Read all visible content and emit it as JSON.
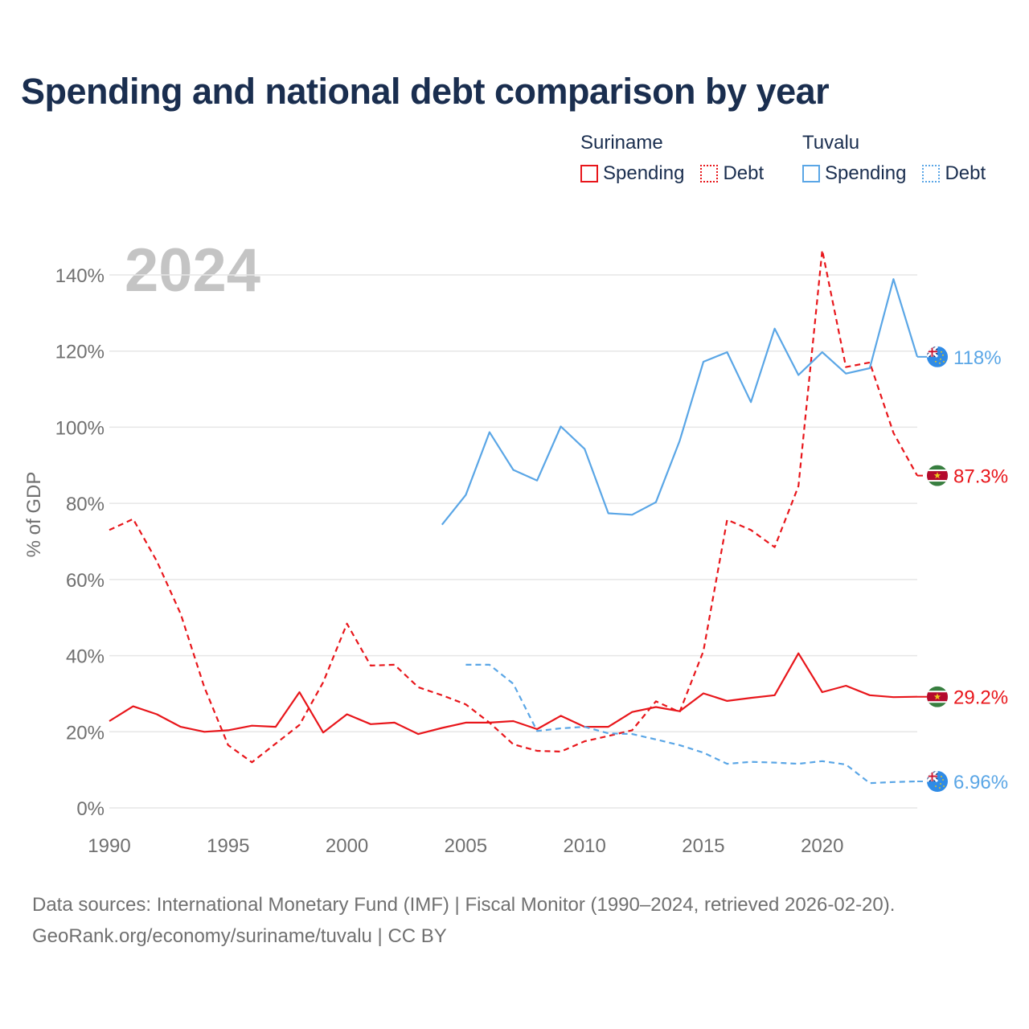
{
  "header": {
    "title": "Spending and national debt comparison by year"
  },
  "legend": {
    "groups": [
      {
        "name": "Suriname",
        "items": [
          {
            "label": "Spending",
            "style": "solid",
            "color": "#e8161b"
          },
          {
            "label": "Debt",
            "style": "dashed",
            "color": "#e8161b"
          }
        ]
      },
      {
        "name": "Tuvalu",
        "items": [
          {
            "label": "Spending",
            "style": "solid",
            "color": "#5aa6e6"
          },
          {
            "label": "Debt",
            "style": "dashed",
            "color": "#5aa6e6"
          }
        ]
      }
    ]
  },
  "chart_data": {
    "type": "line",
    "title": "Spending and national debt comparison by year",
    "year_watermark": "2024",
    "xlabel": "",
    "ylabel": "% of GDP",
    "xlim": [
      1990,
      2024
    ],
    "ylim": [
      0,
      140
    ],
    "x_ticks": [
      1990,
      1995,
      2000,
      2005,
      2010,
      2015,
      2020
    ],
    "x_tick_labels": [
      "1990",
      "1995",
      "2000",
      "2005",
      "2010",
      "2015",
      "2020"
    ],
    "y_ticks": [
      0,
      20,
      40,
      60,
      80,
      100,
      120,
      140
    ],
    "y_tick_labels": [
      "0%",
      "20%",
      "40%",
      "60%",
      "80%",
      "100%",
      "120%",
      "140%"
    ],
    "grid": true,
    "series": [
      {
        "name": "Suriname Spending",
        "country": "Suriname",
        "metric": "Spending",
        "color": "#e8161b",
        "style": "solid",
        "end_label": "29.2%",
        "flag": "suriname",
        "x": [
          1990,
          1991,
          1992,
          1993,
          1994,
          1995,
          1996,
          1997,
          1998,
          1999,
          2000,
          2001,
          2002,
          2003,
          2004,
          2005,
          2006,
          2007,
          2008,
          2009,
          2010,
          2011,
          2012,
          2013,
          2014,
          2015,
          2016,
          2017,
          2018,
          2019,
          2020,
          2021,
          2022,
          2023,
          2024
        ],
        "values": [
          22.8,
          26.7,
          24.6,
          21.3,
          20.0,
          20.4,
          21.6,
          21.3,
          30.4,
          19.8,
          24.6,
          22.0,
          22.4,
          19.4,
          21.0,
          22.4,
          22.4,
          22.8,
          20.7,
          24.2,
          21.3,
          21.3,
          25.2,
          26.5,
          25.4,
          30.1,
          28.1,
          28.9,
          29.6,
          40.6,
          30.4,
          32.1,
          29.6,
          29.1,
          29.2
        ]
      },
      {
        "name": "Suriname Debt",
        "country": "Suriname",
        "metric": "Debt",
        "color": "#e8161b",
        "style": "dashed",
        "end_label": "87.3%",
        "flag": "suriname",
        "x": [
          1990,
          1991,
          1992,
          1993,
          1994,
          1995,
          1996,
          1997,
          1998,
          1999,
          2000,
          2001,
          2002,
          2003,
          2004,
          2005,
          2006,
          2007,
          2008,
          2009,
          2010,
          2011,
          2012,
          2013,
          2014,
          2015,
          2016,
          2017,
          2018,
          2019,
          2020,
          2021,
          2022,
          2023,
          2024
        ],
        "values": [
          73.0,
          75.9,
          64.8,
          51.0,
          31.7,
          16.5,
          12.0,
          16.9,
          21.8,
          33.0,
          48.4,
          37.4,
          37.6,
          31.7,
          29.6,
          27.2,
          22.4,
          16.7,
          15.0,
          14.8,
          17.5,
          18.9,
          20.4,
          28.0,
          25.2,
          41.2,
          75.7,
          73.0,
          68.5,
          84.5,
          146.5,
          115.8,
          117.0,
          98.5,
          87.3
        ]
      },
      {
        "name": "Tuvalu Spending",
        "country": "Tuvalu",
        "metric": "Spending",
        "color": "#5aa6e6",
        "style": "solid",
        "end_label": "118%",
        "flag": "tuvalu",
        "x": [
          2004,
          2005,
          2006,
          2007,
          2008,
          2009,
          2010,
          2011,
          2012,
          2013,
          2014,
          2015,
          2016,
          2017,
          2018,
          2019,
          2020,
          2021,
          2022,
          2023,
          2024
        ],
        "values": [
          74.4,
          82.2,
          98.7,
          88.8,
          86.0,
          100.2,
          94.3,
          77.4,
          77.0,
          80.3,
          96.4,
          117.2,
          119.7,
          106.6,
          125.9,
          113.7,
          119.7,
          114.1,
          115.5,
          138.9,
          118.5
        ]
      },
      {
        "name": "Tuvalu Debt",
        "country": "Tuvalu",
        "metric": "Debt",
        "color": "#5aa6e6",
        "style": "dashed",
        "end_label": "6.96%",
        "flag": "tuvalu",
        "x": [
          2005,
          2006,
          2007,
          2008,
          2009,
          2010,
          2011,
          2012,
          2013,
          2014,
          2015,
          2016,
          2017,
          2018,
          2019,
          2020,
          2021,
          2022,
          2023,
          2024
        ],
        "values": [
          37.6,
          37.6,
          32.6,
          20.2,
          20.9,
          21.3,
          19.6,
          19.4,
          18.0,
          16.5,
          14.5,
          11.6,
          12.1,
          11.9,
          11.6,
          12.3,
          11.4,
          6.5,
          6.8,
          6.96
        ]
      }
    ]
  },
  "source": {
    "line1": "Data sources: International Monetary Fund (IMF) | Fiscal Monitor (1990–2024, retrieved 2026-02-20).",
    "line2": "GeoRank.org/economy/suriname/tuvalu | CC BY"
  }
}
